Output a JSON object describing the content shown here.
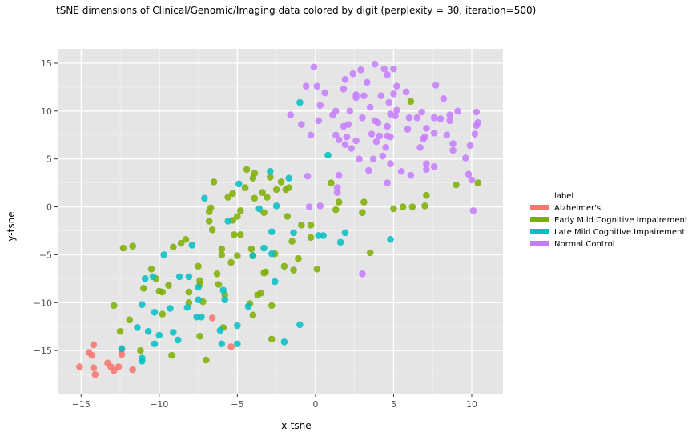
{
  "chart_data": {
    "type": "scatter",
    "title": "tSNE dimensions of Clinical/Genomic/Imaging data colored by digit (perplexity = 30, iteration=500)",
    "xlabel": "x-tsne",
    "ylabel": "y-tsne",
    "xlim": [
      -16.5,
      12
    ],
    "ylim": [
      -19.5,
      16.5
    ],
    "x_ticks": [
      -15,
      -10,
      -5,
      0,
      5,
      10
    ],
    "y_ticks": [
      -15,
      -10,
      -5,
      0,
      5,
      10,
      15
    ],
    "x_tick_labels": [
      "−15",
      "−10",
      "−5",
      "0",
      "5",
      "10"
    ],
    "y_tick_labels": [
      "−15",
      "−10",
      "−5",
      "0",
      "5",
      "10",
      "15"
    ],
    "grid": true,
    "legend": {
      "title": "label",
      "position": "right"
    },
    "series": [
      {
        "name": "Alzheimer's",
        "color": "#f8766d",
        "points": [
          [
            -15.1,
            -16.7
          ],
          [
            -14.5,
            -15.2
          ],
          [
            -14.3,
            -15.5
          ],
          [
            -14.2,
            -14.4
          ],
          [
            -14.2,
            -16.8
          ],
          [
            -14.1,
            -17.5
          ],
          [
            -13.3,
            -16.3
          ],
          [
            -13.1,
            -16.7
          ],
          [
            -12.9,
            -17.1
          ],
          [
            -12.6,
            -16.7
          ],
          [
            -12.4,
            -14.9
          ],
          [
            -12.4,
            -15.4
          ],
          [
            -11.7,
            -17.0
          ],
          [
            -6.6,
            -11.6
          ],
          [
            -5.4,
            -14.6
          ]
        ]
      },
      {
        "name": "Early Mild Cognitive Impairement",
        "color": "#7cae00",
        "points": [
          [
            -12.9,
            -10.3
          ],
          [
            -12.5,
            -13.0
          ],
          [
            -12.3,
            -4.3
          ],
          [
            -11.9,
            -11.8
          ],
          [
            -11.7,
            -4.1
          ],
          [
            -11.2,
            -15.0
          ],
          [
            -11.0,
            -8.5
          ],
          [
            -10.5,
            -6.5
          ],
          [
            -10.2,
            -7.5
          ],
          [
            -10.0,
            -8.8
          ],
          [
            -9.8,
            -8.9
          ],
          [
            -9.8,
            -11.2
          ],
          [
            -9.4,
            -8.2
          ],
          [
            -9.2,
            -15.5
          ],
          [
            -9.1,
            -4.2
          ],
          [
            -8.6,
            -3.8
          ],
          [
            -8.3,
            -3.4
          ],
          [
            -8.1,
            -8.9
          ],
          [
            -8.1,
            -10.0
          ],
          [
            -7.5,
            -6.2
          ],
          [
            -7.4,
            -7.7
          ],
          [
            -7.4,
            -8.1
          ],
          [
            -7.4,
            -13.5
          ],
          [
            -7.2,
            -9.9
          ],
          [
            -7.0,
            -16.0
          ],
          [
            -6.8,
            -1.5
          ],
          [
            -6.8,
            -0.5
          ],
          [
            -6.7,
            -0.1
          ],
          [
            -6.6,
            -2.4
          ],
          [
            -6.5,
            2.6
          ],
          [
            -6.3,
            -7.0
          ],
          [
            -6.2,
            -8.1
          ],
          [
            -6.0,
            -4.4
          ],
          [
            -6.0,
            -5.0
          ],
          [
            -5.9,
            -12.6
          ],
          [
            -5.8,
            -9.2
          ],
          [
            -5.6,
            1.0
          ],
          [
            -5.4,
            -5.8
          ],
          [
            -5.3,
            -1.4
          ],
          [
            -5.3,
            1.4
          ],
          [
            -5.2,
            -2.9
          ],
          [
            -5.0,
            -1.0
          ],
          [
            -5.0,
            -5.1
          ],
          [
            -4.8,
            -0.4
          ],
          [
            -4.8,
            -2.9
          ],
          [
            -4.5,
            2.0
          ],
          [
            -4.4,
            3.9
          ],
          [
            -4.2,
            -10.1
          ],
          [
            -4.1,
            -4.4
          ],
          [
            -4.0,
            -5.1
          ],
          [
            -4.0,
            -11.3
          ],
          [
            -4.0,
            3.0
          ],
          [
            -3.9,
            3.5
          ],
          [
            -3.9,
            0.9
          ],
          [
            -3.7,
            -9.2
          ],
          [
            -3.5,
            -9.0
          ],
          [
            -3.4,
            1.5
          ],
          [
            -3.3,
            -0.6
          ],
          [
            -3.3,
            -6.9
          ],
          [
            -3.2,
            -6.8
          ],
          [
            -3.1,
            1.0
          ],
          [
            -2.9,
            3.1
          ],
          [
            -2.8,
            -10.3
          ],
          [
            -2.8,
            -13.8
          ],
          [
            -2.6,
            -4.9
          ],
          [
            -2.5,
            1.8
          ],
          [
            -2.2,
            2.6
          ],
          [
            -2.0,
            -6.2
          ],
          [
            -1.9,
            1.8
          ],
          [
            -1.8,
            -1.0
          ],
          [
            -1.7,
            2.0
          ],
          [
            -1.5,
            -3.6
          ],
          [
            -1.4,
            -6.6
          ],
          [
            -1.1,
            -5.4
          ],
          [
            -0.9,
            -1.9
          ],
          [
            -0.3,
            -3.2
          ],
          [
            -0.3,
            -1.9
          ],
          [
            0.1,
            -6.5
          ],
          [
            1.0,
            2.5
          ],
          [
            1.3,
            -0.3
          ],
          [
            1.5,
            0.5
          ],
          [
            3.0,
            -0.6
          ],
          [
            3.1,
            0.5
          ],
          [
            3.5,
            -4.8
          ],
          [
            5.0,
            -0.2
          ],
          [
            5.6,
            0.0
          ],
          [
            6.2,
            0.0
          ],
          [
            6.1,
            11.0
          ],
          [
            7.0,
            0.1
          ],
          [
            7.1,
            1.2
          ],
          [
            9.0,
            2.3
          ],
          [
            10.4,
            2.5
          ]
        ]
      },
      {
        "name": "Late Mild Cognitive Impairement",
        "color": "#00bfc4",
        "points": [
          [
            -12.4,
            -14.8
          ],
          [
            -11.4,
            -12.6
          ],
          [
            -11.1,
            -15.8
          ],
          [
            -11.1,
            -16.1
          ],
          [
            -11.1,
            -10.2
          ],
          [
            -10.9,
            -7.5
          ],
          [
            -10.7,
            -13.0
          ],
          [
            -10.4,
            -7.3
          ],
          [
            -10.3,
            -11.0
          ],
          [
            -10.3,
            -14.3
          ],
          [
            -10.0,
            -13.4
          ],
          [
            -9.7,
            -5.0
          ],
          [
            -9.3,
            -10.6
          ],
          [
            -9.1,
            -13.1
          ],
          [
            -8.8,
            -13.9
          ],
          [
            -8.7,
            -7.3
          ],
          [
            -8.2,
            -10.5
          ],
          [
            -8.1,
            -7.3
          ],
          [
            -7.9,
            -4.0
          ],
          [
            -7.6,
            -11.5
          ],
          [
            -7.5,
            -8.4
          ],
          [
            -7.5,
            -9.7
          ],
          [
            -7.3,
            -11.5
          ],
          [
            -7.1,
            0.9
          ],
          [
            -6.1,
            -12.9
          ],
          [
            -6.0,
            -14.3
          ],
          [
            -5.9,
            -8.7
          ],
          [
            -5.8,
            -9.7
          ],
          [
            -5.6,
            -1.5
          ],
          [
            -5.0,
            -12.4
          ],
          [
            -5.0,
            -14.3
          ],
          [
            -4.9,
            2.4
          ],
          [
            -4.3,
            -10.4
          ],
          [
            -4.0,
            -5.1
          ],
          [
            -3.6,
            -0.2
          ],
          [
            -3.3,
            -4.3
          ],
          [
            -2.9,
            3.7
          ],
          [
            -2.8,
            -2.6
          ],
          [
            -2.8,
            -4.9
          ],
          [
            -2.6,
            -7.8
          ],
          [
            -2.5,
            0.1
          ],
          [
            -2.0,
            -14.1
          ],
          [
            -1.7,
            3.0
          ],
          [
            -1.4,
            -2.7
          ],
          [
            -1.0,
            -12.3
          ],
          [
            -1.0,
            10.9
          ],
          [
            0.2,
            -3.0
          ],
          [
            0.5,
            -3.0
          ],
          [
            0.8,
            5.4
          ],
          [
            1.6,
            -3.7
          ],
          [
            1.9,
            -2.7
          ],
          [
            4.8,
            -3.4
          ]
        ]
      },
      {
        "name": "Normal Control",
        "color": "#c77cff",
        "points": [
          [
            -1.6,
            9.6
          ],
          [
            -0.9,
            8.6
          ],
          [
            -0.6,
            12.6
          ],
          [
            -0.5,
            3.2
          ],
          [
            -0.4,
            0.0
          ],
          [
            -0.3,
            7.5
          ],
          [
            -0.1,
            14.6
          ],
          [
            0.1,
            12.6
          ],
          [
            0.2,
            9.0
          ],
          [
            0.3,
            0.1
          ],
          [
            0.3,
            10.6
          ],
          [
            0.6,
            11.9
          ],
          [
            1.1,
            9.6
          ],
          [
            1.3,
            10.0
          ],
          [
            1.3,
            7.5
          ],
          [
            1.4,
            2.0
          ],
          [
            1.4,
            1.5
          ],
          [
            1.5,
            7.0
          ],
          [
            1.5,
            3.3
          ],
          [
            1.8,
            12.3
          ],
          [
            1.8,
            8.4
          ],
          [
            1.9,
            13.3
          ],
          [
            1.9,
            6.5
          ],
          [
            2.0,
            7.3
          ],
          [
            2.1,
            8.6
          ],
          [
            2.2,
            10.0
          ],
          [
            2.3,
            6.1
          ],
          [
            2.4,
            13.9
          ],
          [
            2.6,
            11.4
          ],
          [
            2.6,
            11.7
          ],
          [
            2.6,
            6.9
          ],
          [
            2.8,
            5.0
          ],
          [
            2.9,
            14.3
          ],
          [
            3.0,
            -7.0
          ],
          [
            3.0,
            9.3
          ],
          [
            3.1,
            11.6
          ],
          [
            3.3,
            13.0
          ],
          [
            3.4,
            3.8
          ],
          [
            3.5,
            10.4
          ],
          [
            3.6,
            7.6
          ],
          [
            3.7,
            5.0
          ],
          [
            3.8,
            9.0
          ],
          [
            3.8,
            14.9
          ],
          [
            3.9,
            6.8
          ],
          [
            4.0,
            8.8
          ],
          [
            4.1,
            7.4
          ],
          [
            4.2,
            11.6
          ],
          [
            4.3,
            5.3
          ],
          [
            4.4,
            14.4
          ],
          [
            4.5,
            6.2
          ],
          [
            4.6,
            2.5
          ],
          [
            4.6,
            7.4
          ],
          [
            4.6,
            8.4
          ],
          [
            4.6,
            13.8
          ],
          [
            4.7,
            10.9
          ],
          [
            4.8,
            9.7
          ],
          [
            4.8,
            4.5
          ],
          [
            4.8,
            7.3
          ],
          [
            5.0,
            14.4
          ],
          [
            5.0,
            11.8
          ],
          [
            5.1,
            9.5
          ],
          [
            5.2,
            10.1
          ],
          [
            5.2,
            12.6
          ],
          [
            5.5,
            3.7
          ],
          [
            5.8,
            12.0
          ],
          [
            5.9,
            8.1
          ],
          [
            6.0,
            9.3
          ],
          [
            6.1,
            3.3
          ],
          [
            6.5,
            9.3
          ],
          [
            6.7,
            6.2
          ],
          [
            6.8,
            9.9
          ],
          [
            6.9,
            7.1
          ],
          [
            7.0,
            7.3
          ],
          [
            7.1,
            8.2
          ],
          [
            7.1,
            4.5
          ],
          [
            7.1,
            3.9
          ],
          [
            7.6,
            4.2
          ],
          [
            7.6,
            7.7
          ],
          [
            7.6,
            9.3
          ],
          [
            7.7,
            12.7
          ],
          [
            8.0,
            9.2
          ],
          [
            8.2,
            11.3
          ],
          [
            8.4,
            7.5
          ],
          [
            8.6,
            9.0
          ],
          [
            8.6,
            9.6
          ],
          [
            8.8,
            6.6
          ],
          [
            8.8,
            5.9
          ],
          [
            9.1,
            10.0
          ],
          [
            9.6,
            5.1
          ],
          [
            9.8,
            3.4
          ],
          [
            9.9,
            6.4
          ],
          [
            10.0,
            2.8
          ],
          [
            10.1,
            -0.4
          ],
          [
            10.3,
            9.9
          ],
          [
            10.3,
            8.5
          ],
          [
            10.4,
            8.8
          ],
          [
            10.2,
            7.6
          ]
        ]
      }
    ]
  }
}
